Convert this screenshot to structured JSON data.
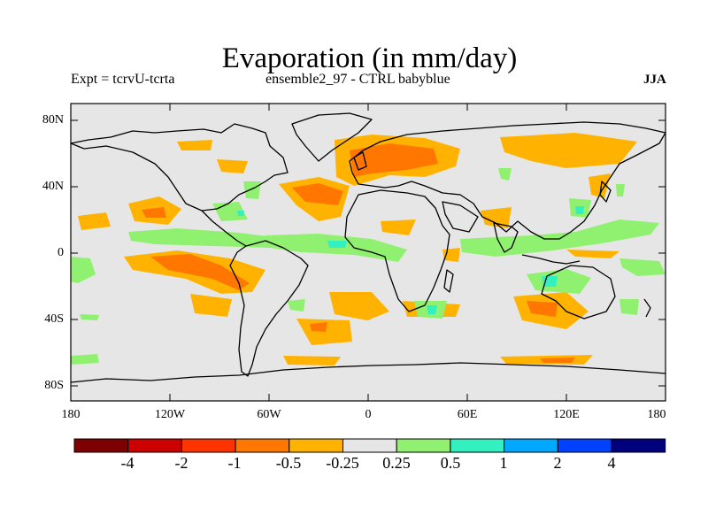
{
  "header": {
    "title": "Evaporation (in mm/day)",
    "experiment": "Expt = tcrvU-tcrta",
    "ensemble": "ensemble2_97 - CTRL babyblue",
    "season": "JJA"
  },
  "map": {
    "ocean_color": "#e6e6e6",
    "coast_color": "#000000",
    "lat_labels": [
      "80N",
      "40N",
      "0",
      "40S",
      "80S"
    ],
    "lon_labels": [
      "180",
      "120W",
      "60W",
      "0",
      "60E",
      "120E",
      "180"
    ]
  },
  "colorbar": {
    "colors": [
      "#7f0000",
      "#cc0000",
      "#ff3300",
      "#ff7700",
      "#ffb300",
      "#e6e6e6",
      "#90f070",
      "#33f0c0",
      "#00a8ff",
      "#0040ff",
      "#00007f"
    ],
    "labels": [
      "-4",
      "-2",
      "-1",
      "-0.5",
      "-0.25",
      "0.25",
      "0.5",
      "1",
      "2",
      "4"
    ]
  }
}
